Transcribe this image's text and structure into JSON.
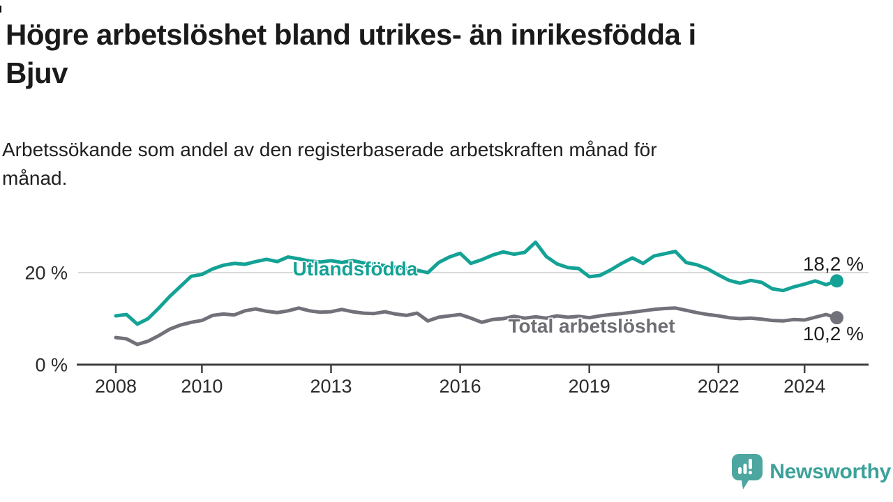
{
  "header": {
    "title": "Högre arbetslöshet bland utrikes- än inrikesfödda i Bjuv",
    "title_lines": [
      "Högre arbetslöshet bland utrikes- än inrikesfödda i",
      "Bjuv"
    ],
    "subtitle": "Arbetssökande som andel av den registerbaserade arbetskraften månad för månad.",
    "subtitle_lines": [
      "Arbetssökande som andel av den registerbaserade arbetskraften månad för",
      "månad."
    ]
  },
  "chart_data": {
    "type": "line",
    "title": "Högre arbetslöshet bland utrikes- än inrikesfödda i Bjuv",
    "subtitle": "Arbetssökande som andel av den registerbaserade arbetskraften månad för månad.",
    "unit": "%",
    "x_start_year": 2008,
    "points_per_year": 4,
    "x_tick_years": [
      2008,
      2010,
      2013,
      2016,
      2019,
      2022,
      2024
    ],
    "x_tick_labels": [
      "2008",
      "2010",
      "2013",
      "2016",
      "2019",
      "2022",
      "2024"
    ],
    "y_ticks": [
      {
        "value": 0,
        "label": "0 %"
      },
      {
        "value": 20,
        "label": "20 %"
      }
    ],
    "ylim": [
      0,
      28
    ],
    "grid": "horizontal line at 20 % only",
    "legend_position": "inline labels on lines, value labels at line ends",
    "colors": {
      "utlandsfodda": "#13a295",
      "total": "#71717a",
      "axis": "#3f3f3f",
      "gridline": "#d9d9d9",
      "text": "#1f1f1f"
    },
    "series": [
      {
        "name": "Utlandsfödda",
        "color": "#13a295",
        "end_label": "18,2 %",
        "end_value": 18.2,
        "values": [
          10.6,
          10.9,
          8.8,
          10.0,
          12.3,
          14.8,
          17.0,
          19.2,
          19.6,
          20.8,
          21.6,
          22.0,
          21.8,
          22.4,
          22.9,
          22.4,
          23.4,
          23.0,
          22.5,
          22.3,
          22.6,
          22.2,
          22.6,
          22.1,
          21.9,
          21.5,
          21.2,
          20.9,
          20.5,
          20.0,
          22.2,
          23.4,
          24.2,
          22.0,
          22.8,
          23.8,
          24.5,
          24.0,
          24.4,
          26.6,
          23.5,
          21.9,
          21.1,
          20.9,
          19.1,
          19.4,
          20.6,
          22.0,
          23.2,
          22.0,
          23.6,
          24.1,
          24.6,
          22.2,
          21.7,
          20.8,
          19.5,
          18.3,
          17.7,
          18.3,
          17.9,
          16.5,
          16.1,
          16.9,
          17.5,
          18.2,
          17.4,
          18.2
        ]
      },
      {
        "name": "Total arbetslöshet",
        "color": "#71717a",
        "end_label": "10,2 %",
        "end_value": 10.2,
        "values": [
          5.9,
          5.6,
          4.4,
          5.1,
          6.3,
          7.7,
          8.6,
          9.2,
          9.6,
          10.7,
          11.0,
          10.8,
          11.7,
          12.1,
          11.6,
          11.3,
          11.7,
          12.3,
          11.7,
          11.4,
          11.5,
          12.0,
          11.5,
          11.2,
          11.1,
          11.5,
          11.0,
          10.7,
          11.2,
          9.5,
          10.3,
          10.6,
          10.9,
          10.1,
          9.2,
          9.8,
          10.0,
          10.5,
          10.1,
          10.4,
          10.1,
          10.6,
          10.3,
          10.5,
          10.2,
          10.6,
          10.9,
          11.1,
          11.4,
          11.7,
          12.0,
          12.2,
          12.3,
          11.8,
          11.3,
          10.9,
          10.6,
          10.2,
          10.0,
          10.1,
          9.9,
          9.6,
          9.5,
          9.8,
          9.7,
          10.3,
          10.9,
          10.2
        ]
      }
    ]
  },
  "footer": {
    "brand": "Newsworthy",
    "brand_color": "#3ba19a",
    "logo_mark_color": "#4da6a0"
  }
}
